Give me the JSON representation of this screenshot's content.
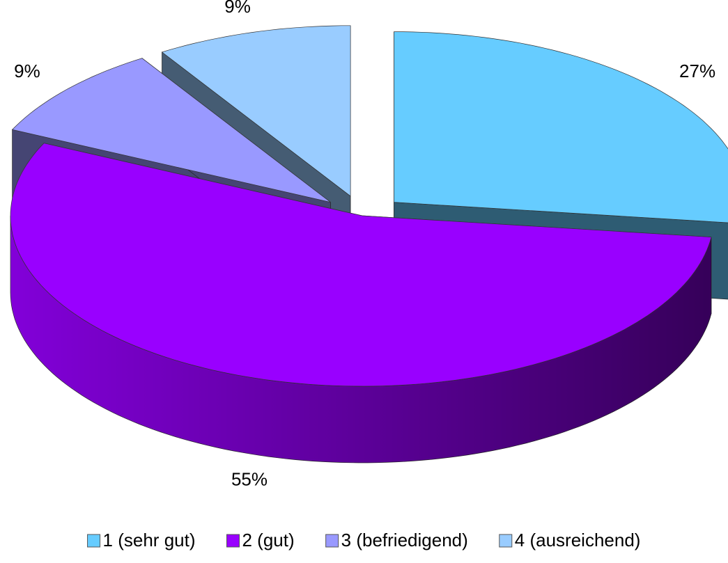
{
  "chart_data": {
    "type": "pie",
    "categories": [
      "1 (sehr gut)",
      "2 (gut)",
      "3 (befriedigend)",
      "4 (ausreichend)"
    ],
    "values": [
      27,
      55,
      9,
      9
    ],
    "value_labels": [
      "27%",
      "55%",
      "9%",
      "9%"
    ],
    "colors": [
      "#66ccff",
      "#9900ff",
      "#9999ff",
      "#99ccff"
    ],
    "legend": "bottom"
  }
}
